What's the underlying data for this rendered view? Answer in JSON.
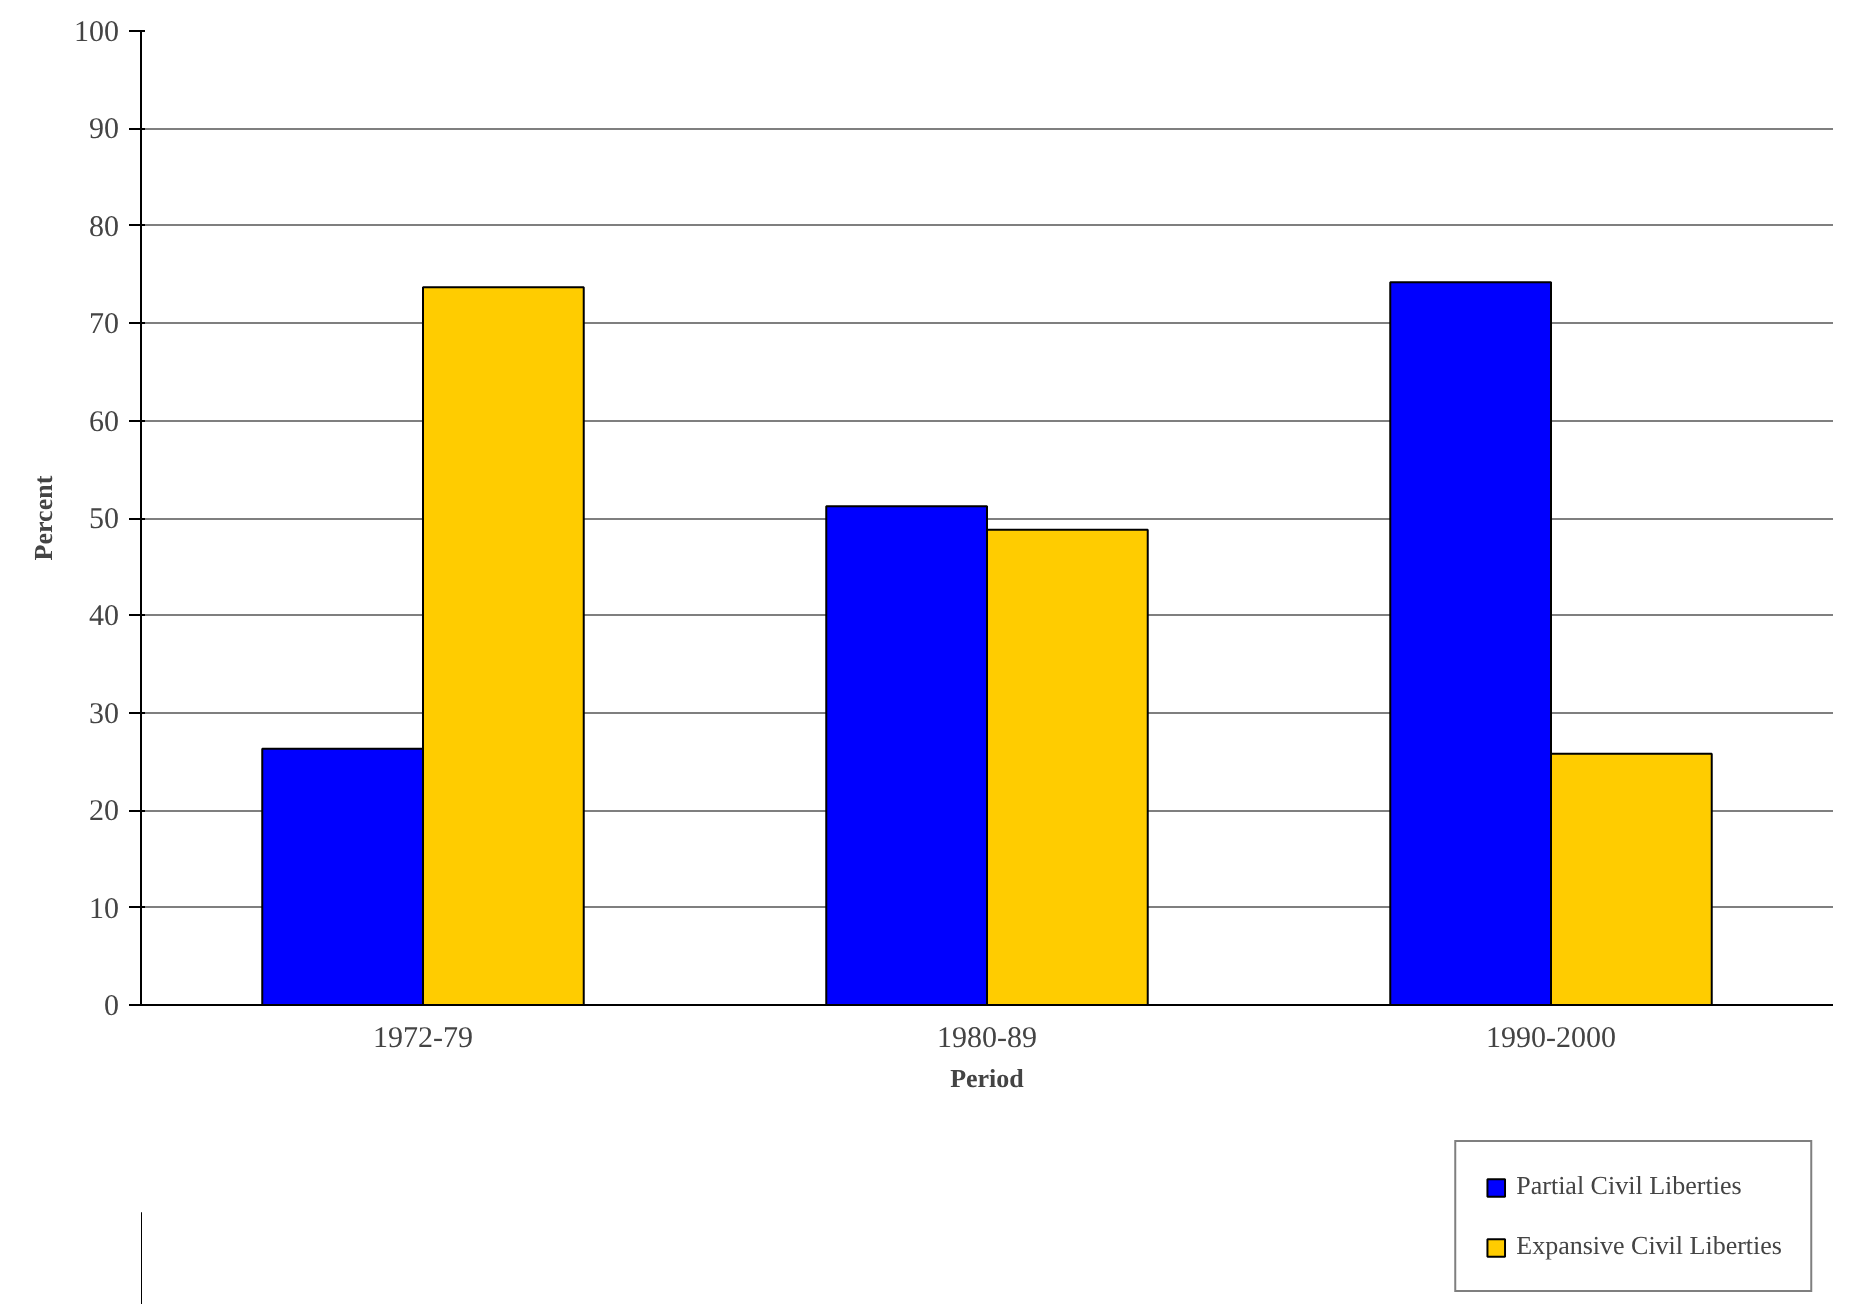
{
  "chart_data": {
    "type": "bar",
    "xlabel": "Period",
    "ylabel": "Percent",
    "categories": [
      "1972-79",
      "1980-89",
      "1990-2000"
    ],
    "series": [
      {
        "name": "Partial Civil Liberties",
        "color": "#0000ff",
        "values": [
          26.3,
          51.2,
          74.2
        ]
      },
      {
        "name": "Expansive Civil Liberties",
        "color": "#ffcc00",
        "values": [
          73.7,
          48.8,
          25.8
        ]
      }
    ],
    "ylim": [
      0,
      100
    ],
    "yticks": [
      0,
      10,
      20,
      30,
      40,
      50,
      60,
      70,
      80,
      90,
      100
    ],
    "grid": "y",
    "legend": "bottom right"
  }
}
